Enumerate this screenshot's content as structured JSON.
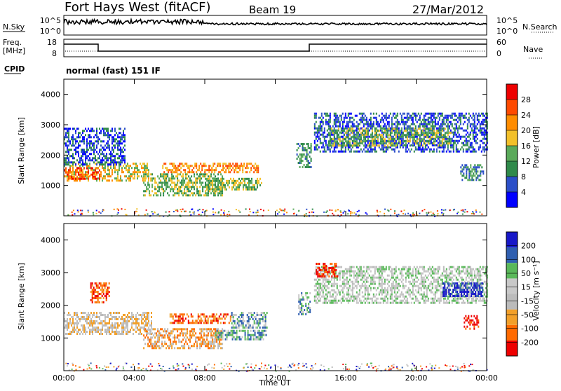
{
  "header": {
    "station": "Fort Hays West (fitACF)",
    "beam": "Beam 19",
    "date": "27/Mar/2012",
    "mode": "normal (fast) 151 IF"
  },
  "panels": {
    "nsky": {
      "left_label": "N.Sky",
      "right_label": "N.Search",
      "left_ticks": [
        "10^5",
        "10^0"
      ],
      "right_ticks": [
        "10^5",
        "10^0"
      ]
    },
    "freq": {
      "left_label_1": "Freq.",
      "left_label_2": "[MHz]",
      "left_ticks": [
        "18",
        "8"
      ],
      "right_label": "Nave",
      "right_ticks": [
        "60",
        "0"
      ]
    },
    "cpid": {
      "label": "CPID"
    }
  },
  "colors": {
    "power": [
      "#0000ff",
      "#2b4fc8",
      "#2f8a4a",
      "#5aaa5a",
      "#f2c02a",
      "#ff8c00",
      "#ff4a00",
      "#ee0000"
    ],
    "velocity": [
      "#ee0000",
      "#ff6a00",
      "#f2a02a",
      "#bbbbbb",
      "#c8c8c8",
      "#5ab85a",
      "#2f5fb0",
      "#1818c8"
    ]
  },
  "chart_data": [
    {
      "type": "heatmap",
      "name": "power",
      "xlabel": "",
      "ylabel": "Slant Range [km]",
      "xlim": [
        "00:00",
        "24:00"
      ],
      "ylim": [
        0,
        4500
      ],
      "y_ticks": [
        "1000",
        "2000",
        "3000",
        "4000"
      ],
      "colorbar": {
        "label": "Power [dB]",
        "ticks": [
          "28",
          "24",
          "20",
          "16",
          "12",
          "8",
          "4"
        ]
      },
      "regions": [
        {
          "x": [
            0.0,
            4.8
          ],
          "y": [
            1150,
            1750
          ],
          "level": 4
        },
        {
          "x": [
            0.0,
            2.0
          ],
          "y": [
            1200,
            1600
          ],
          "level": 6
        },
        {
          "x": [
            0.0,
            3.5
          ],
          "y": [
            1700,
            2900
          ],
          "level": 1
        },
        {
          "x": [
            4.5,
            9.0
          ],
          "y": [
            700,
            1400
          ],
          "level": 3
        },
        {
          "x": [
            5.5,
            11.0
          ],
          "y": [
            1450,
            1750
          ],
          "level": 5
        },
        {
          "x": [
            8.0,
            11.2
          ],
          "y": [
            900,
            1250
          ],
          "level": 3
        },
        {
          "x": [
            13.2,
            14.0
          ],
          "y": [
            1600,
            2400
          ],
          "level": 2
        },
        {
          "x": [
            14.2,
            24.0
          ],
          "y": [
            2100,
            3400
          ],
          "level": 1
        },
        {
          "x": [
            15.0,
            22.0
          ],
          "y": [
            2300,
            2900
          ],
          "level": 3
        },
        {
          "x": [
            22.5,
            23.8
          ],
          "y": [
            1200,
            1700
          ],
          "level": 2
        }
      ]
    },
    {
      "type": "heatmap",
      "name": "velocity",
      "xlabel": "Time UT",
      "ylabel": "Slant Range [km]",
      "x_ticks": [
        "00:00",
        "04:00",
        "08:00",
        "12:00",
        "16:00",
        "20:00",
        "00:00"
      ],
      "xlim": [
        "00:00",
        "24:00"
      ],
      "ylim": [
        0,
        4500
      ],
      "y_ticks": [
        "1000",
        "2000",
        "3000",
        "4000"
      ],
      "colorbar": {
        "label": "Velocity [m s⁻¹]",
        "ticks": [
          "200",
          "100",
          "50",
          "15",
          "-15",
          "-50",
          "-100",
          "-200"
        ]
      },
      "regions": [
        {
          "x": [
            0.0,
            5.0
          ],
          "y": [
            1150,
            1800
          ],
          "level": 3
        },
        {
          "x": [
            1.5,
            2.6
          ],
          "y": [
            2100,
            2700
          ],
          "level": 1
        },
        {
          "x": [
            4.5,
            9.0
          ],
          "y": [
            700,
            1300
          ],
          "level": 2
        },
        {
          "x": [
            6.0,
            9.5
          ],
          "y": [
            1450,
            1750
          ],
          "level": 1
        },
        {
          "x": [
            9.5,
            11.5
          ],
          "y": [
            1300,
            1800
          ],
          "level": 5
        },
        {
          "x": [
            8.5,
            11.5
          ],
          "y": [
            950,
            1250
          ],
          "level": 5
        },
        {
          "x": [
            13.3,
            14.0
          ],
          "y": [
            1700,
            2400
          ],
          "level": 5
        },
        {
          "x": [
            14.2,
            24.0
          ],
          "y": [
            2100,
            3200
          ],
          "level": 4
        },
        {
          "x": [
            14.3,
            15.5
          ],
          "y": [
            2900,
            3300
          ],
          "level": 0
        },
        {
          "x": [
            22.7,
            23.5
          ],
          "y": [
            1300,
            1700
          ],
          "level": 0
        },
        {
          "x": [
            21.5,
            23.8
          ],
          "y": [
            2300,
            2700
          ],
          "level": 7
        }
      ]
    }
  ]
}
